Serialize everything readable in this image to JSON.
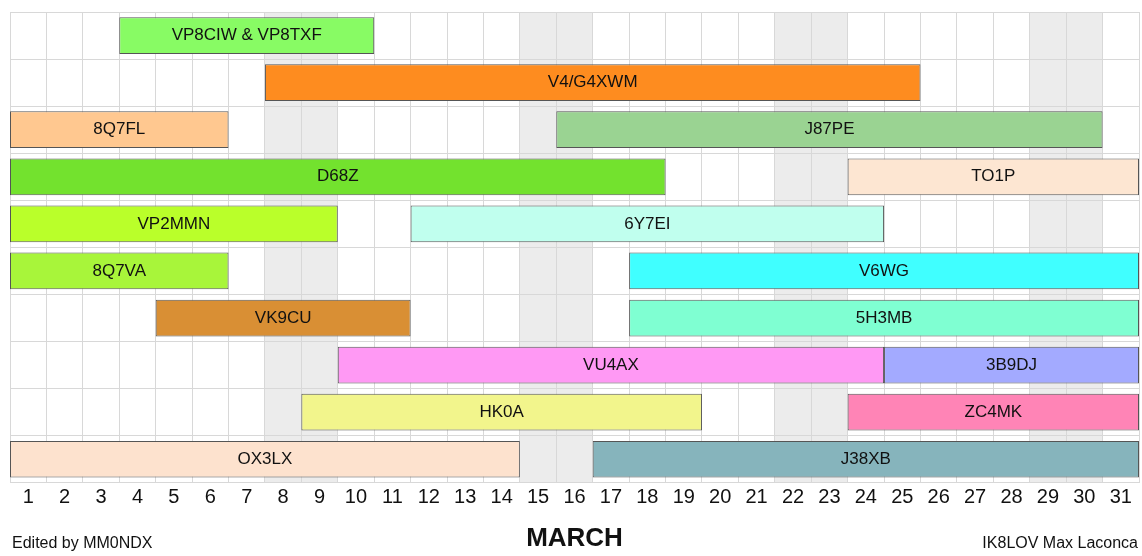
{
  "chart_data": {
    "type": "bar",
    "orientation": "horizontal",
    "xlabel": "MARCH",
    "annotations": [
      "Edited by MM0NDX",
      "IK8LOV Max Laconca"
    ],
    "categories": [
      null,
      null,
      null,
      null,
      null,
      null,
      null,
      null,
      null,
      null
    ],
    "series": [
      {
        "name": "VP8CIW & VP8TXF",
        "color": "#88fb64",
        "base": [
          3.5,
          null,
          null,
          null,
          null,
          null,
          null,
          null,
          null,
          null
        ],
        "values": [
          7,
          null,
          null,
          null,
          null,
          null,
          null,
          null,
          null,
          null
        ]
      },
      {
        "name": "V4/G4XWM",
        "color": "#fe8c1f",
        "base": [
          null,
          7.5,
          null,
          null,
          null,
          null,
          null,
          null,
          null,
          null
        ],
        "values": [
          null,
          18,
          null,
          null,
          null,
          null,
          null,
          null,
          null,
          null
        ]
      },
      {
        "name": "8Q7FL",
        "color": "#ffc890",
        "base": [
          null,
          null,
          0.5,
          null,
          null,
          null,
          null,
          null,
          null,
          null
        ],
        "values": [
          null,
          null,
          6,
          null,
          null,
          null,
          null,
          null,
          null,
          null
        ]
      },
      {
        "name": "J87PE",
        "color": "#9ad392",
        "base": [
          null,
          null,
          15.5,
          null,
          null,
          null,
          null,
          null,
          null,
          null
        ],
        "values": [
          null,
          null,
          15,
          null,
          null,
          null,
          null,
          null,
          null,
          null
        ]
      },
      {
        "name": "D68Z",
        "color": "#73e22e",
        "base": [
          null,
          null,
          null,
          0.5,
          null,
          null,
          null,
          null,
          null,
          null
        ],
        "values": [
          null,
          null,
          null,
          18,
          null,
          null,
          null,
          null,
          null,
          null
        ]
      },
      {
        "name": "TO1P",
        "color": "#fde6d2",
        "base": [
          null,
          null,
          null,
          23.5,
          null,
          null,
          null,
          null,
          null,
          null
        ],
        "values": [
          null,
          null,
          null,
          8,
          null,
          null,
          null,
          null,
          null,
          null
        ]
      },
      {
        "name": "VP2MMN",
        "color": "#baff2a",
        "base": [
          null,
          null,
          null,
          null,
          0.5,
          null,
          null,
          null,
          null,
          null
        ],
        "values": [
          null,
          null,
          null,
          null,
          9,
          null,
          null,
          null,
          null,
          null
        ]
      },
      {
        "name": "6Y7EI",
        "color": "#c0ffee",
        "base": [
          null,
          null,
          null,
          null,
          11.5,
          null,
          null,
          null,
          null,
          null
        ],
        "values": [
          null,
          null,
          null,
          null,
          13,
          null,
          null,
          null,
          null,
          null
        ]
      },
      {
        "name": "8Q7VA",
        "color": "#a8f53a",
        "base": [
          null,
          null,
          null,
          null,
          null,
          0.5,
          null,
          null,
          null,
          null
        ],
        "values": [
          null,
          null,
          null,
          null,
          null,
          6,
          null,
          null,
          null,
          null
        ]
      },
      {
        "name": "V6WG",
        "color": "#40ffff",
        "base": [
          null,
          null,
          null,
          null,
          null,
          17.5,
          null,
          null,
          null,
          null
        ],
        "values": [
          null,
          null,
          null,
          null,
          null,
          14,
          null,
          null,
          null,
          null
        ]
      },
      {
        "name": "VK9CU",
        "color": "#d98f34",
        "base": [
          null,
          null,
          null,
          null,
          null,
          null,
          4.5,
          null,
          null,
          null
        ],
        "values": [
          null,
          null,
          null,
          null,
          null,
          null,
          7,
          null,
          null,
          null
        ]
      },
      {
        "name": "5H3MB",
        "color": "#7fffd2",
        "base": [
          null,
          null,
          null,
          null,
          null,
          null,
          17.5,
          null,
          null,
          null
        ],
        "values": [
          null,
          null,
          null,
          null,
          null,
          null,
          14,
          null,
          null,
          null
        ]
      },
      {
        "name": "VU4AX",
        "color": "#ff99f4",
        "base": [
          null,
          null,
          null,
          null,
          null,
          null,
          null,
          9.5,
          null,
          null
        ],
        "values": [
          null,
          null,
          null,
          null,
          null,
          null,
          null,
          15,
          null,
          null
        ]
      },
      {
        "name": "3B9DJ",
        "color": "#a3aaff",
        "base": [
          null,
          null,
          null,
          null,
          null,
          null,
          null,
          24.5,
          null,
          null
        ],
        "values": [
          null,
          null,
          null,
          null,
          null,
          null,
          null,
          7,
          null,
          null
        ]
      },
      {
        "name": "HK0A",
        "color": "#f2f58c",
        "base": [
          null,
          null,
          null,
          null,
          null,
          null,
          null,
          null,
          8.5,
          null
        ],
        "values": [
          null,
          null,
          null,
          null,
          null,
          null,
          null,
          null,
          11,
          null
        ]
      },
      {
        "name": "ZC4MK",
        "color": "#ff84b6",
        "base": [
          null,
          null,
          null,
          null,
          null,
          null,
          null,
          null,
          23.5,
          null
        ],
        "values": [
          null,
          null,
          null,
          null,
          null,
          null,
          null,
          null,
          8,
          null
        ]
      },
      {
        "name": "OX3LX",
        "color": "#fde2ce",
        "base": [
          null,
          null,
          null,
          null,
          null,
          null,
          null,
          null,
          null,
          0.5
        ],
        "values": [
          null,
          null,
          null,
          null,
          null,
          null,
          null,
          null,
          null,
          14
        ]
      },
      {
        "name": "J38XB",
        "color": "#86b4bc",
        "base": [
          null,
          null,
          null,
          null,
          null,
          null,
          null,
          null,
          null,
          16.5
        ],
        "values": [
          null,
          null,
          null,
          null,
          null,
          null,
          null,
          null,
          null,
          15
        ]
      }
    ],
    "xlim": [
      0.5,
      31.5
    ],
    "xticks": [
      {
        "value": 0.5,
        "label": null
      },
      1,
      {
        "value": 1.5,
        "label": null
      },
      2,
      {
        "value": 2.5,
        "label": null
      },
      3,
      {
        "value": 3.5,
        "label": null
      },
      4,
      {
        "value": 4.5,
        "label": null
      },
      5,
      {
        "value": 5.5,
        "label": null
      },
      6,
      {
        "value": 6.5,
        "label": null
      },
      7,
      {
        "value": 7.5,
        "label": null
      },
      8,
      {
        "value": 8.5,
        "label": null
      },
      9,
      {
        "value": 9.5,
        "label": null
      },
      10,
      {
        "value": 10.5,
        "label": null
      },
      11,
      {
        "value": 11.5,
        "label": null
      },
      12,
      {
        "value": 12.5,
        "label": null
      },
      13,
      {
        "value": 13.5,
        "label": null
      },
      14,
      {
        "value": 14.5,
        "label": null
      },
      15,
      {
        "value": 15.5,
        "label": null
      },
      16,
      {
        "value": 16.5,
        "label": null
      },
      17,
      {
        "value": 17.5,
        "label": null
      },
      18,
      {
        "value": 18.5,
        "label": null
      },
      19,
      {
        "value": 19.5,
        "label": null
      },
      20,
      {
        "value": 20.5,
        "label": null
      },
      21,
      {
        "value": 21.5,
        "label": null
      },
      22,
      {
        "value": 22.5,
        "label": null
      },
      23,
      {
        "value": 23.5,
        "label": null
      },
      24,
      {
        "value": 24.5,
        "label": null
      },
      25,
      {
        "value": 25.5,
        "label": null
      },
      26,
      {
        "value": 26.5,
        "label": null
      },
      27,
      {
        "value": 27.5,
        "label": null
      },
      28,
      {
        "value": 28.5,
        "label": null
      },
      29,
      {
        "value": 29.5,
        "label": null
      },
      30,
      {
        "value": 30.5,
        "label": null
      },
      31,
      {
        "value": 31.5,
        "label": null
      }
    ],
    "bands": [
      {
        "axis": "x",
        "from": 7.5,
        "to": 9.5,
        "color": "#ececec"
      },
      {
        "axis": "x",
        "from": 14.5,
        "to": 16.5,
        "color": "#ececec"
      },
      {
        "axis": "x",
        "from": 21.5,
        "to": 23.5,
        "color": "#ececec"
      },
      {
        "axis": "x",
        "from": 28.5,
        "to": 30.5,
        "color": "#ececec"
      }
    ],
    "grid": true,
    "legend": false,
    "tick_labels": "x"
  }
}
